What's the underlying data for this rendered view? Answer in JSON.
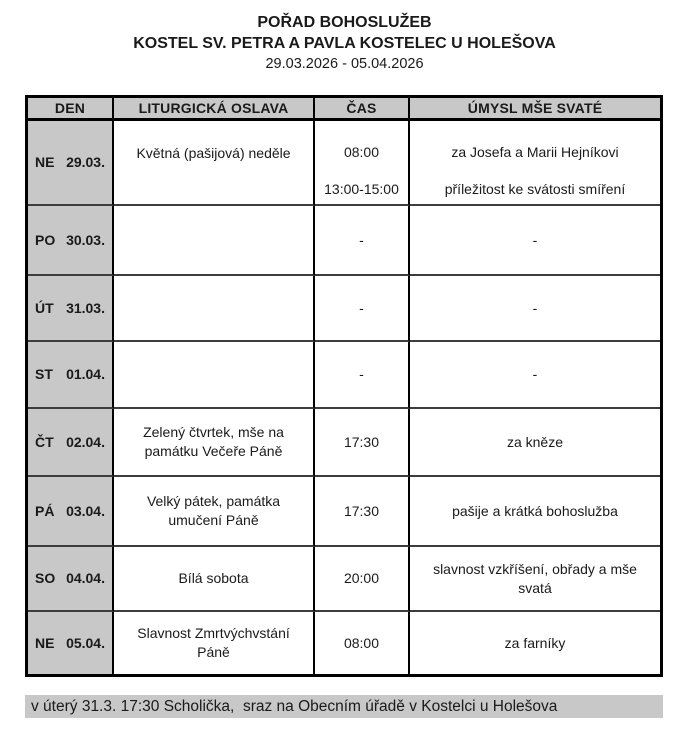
{
  "title": {
    "line1": "POŘAD BOHOSLUŽEB",
    "line2": "KOSTEL SV. PETRA A PAVLA KOSTELEC U HOLEŠOVA",
    "date_range": "29.03.2026 - 05.04.2026"
  },
  "table": {
    "headers": [
      "DEN",
      "LITURGICKÁ OSLAVA",
      "ČAS",
      "ÚMYSL MŠE SVATÉ"
    ],
    "rows": [
      {
        "day": "NE",
        "date": "29.03.",
        "liturgy": "Květná (pašijová) neděle",
        "entries": [
          {
            "time": "08:00",
            "intention": "za Josefa a Marii Hejníkovi"
          },
          {
            "time": "13:00-15:00",
            "intention": "příležitost ke svátosti smíření"
          }
        ]
      },
      {
        "day": "PO",
        "date": "30.03.",
        "liturgy": "",
        "entries": [
          {
            "time": "-",
            "intention": "-"
          }
        ]
      },
      {
        "day": "ÚT",
        "date": "31.03.",
        "liturgy": "",
        "entries": [
          {
            "time": "-",
            "intention": "-"
          }
        ]
      },
      {
        "day": "ST",
        "date": "01.04.",
        "liturgy": "",
        "entries": [
          {
            "time": "-",
            "intention": "-"
          }
        ]
      },
      {
        "day": "ČT",
        "date": "02.04.",
        "liturgy": "Zelený čtvrtek, mše na památku Večeře Páně",
        "entries": [
          {
            "time": "17:30",
            "intention": "za kněze"
          }
        ]
      },
      {
        "day": "PÁ",
        "date": "03.04.",
        "liturgy": "Velký pátek, památka umučení Páně",
        "entries": [
          {
            "time": "17:30",
            "intention": "pašije a krátká bohoslužba"
          }
        ]
      },
      {
        "day": "SO",
        "date": "04.04.",
        "liturgy": "Bílá sobota",
        "entries": [
          {
            "time": "20:00",
            "intention": "slavnost vzkříšení, obřady a mše svatá"
          }
        ]
      },
      {
        "day": "NE",
        "date": "05.04.",
        "liturgy": "Slavnost Zmrtvýchvstání Páně",
        "entries": [
          {
            "time": "08:00",
            "intention": "za farníky"
          }
        ]
      }
    ]
  },
  "footer": {
    "note": "v úterý 31.3. 17:30 Scholička,  sraz na Obecním úřadě v Kostelci u Holešova"
  },
  "colors": {
    "shaded_bg": "#c8c8c8",
    "border": "#000000",
    "text": "#1a1a1a"
  }
}
